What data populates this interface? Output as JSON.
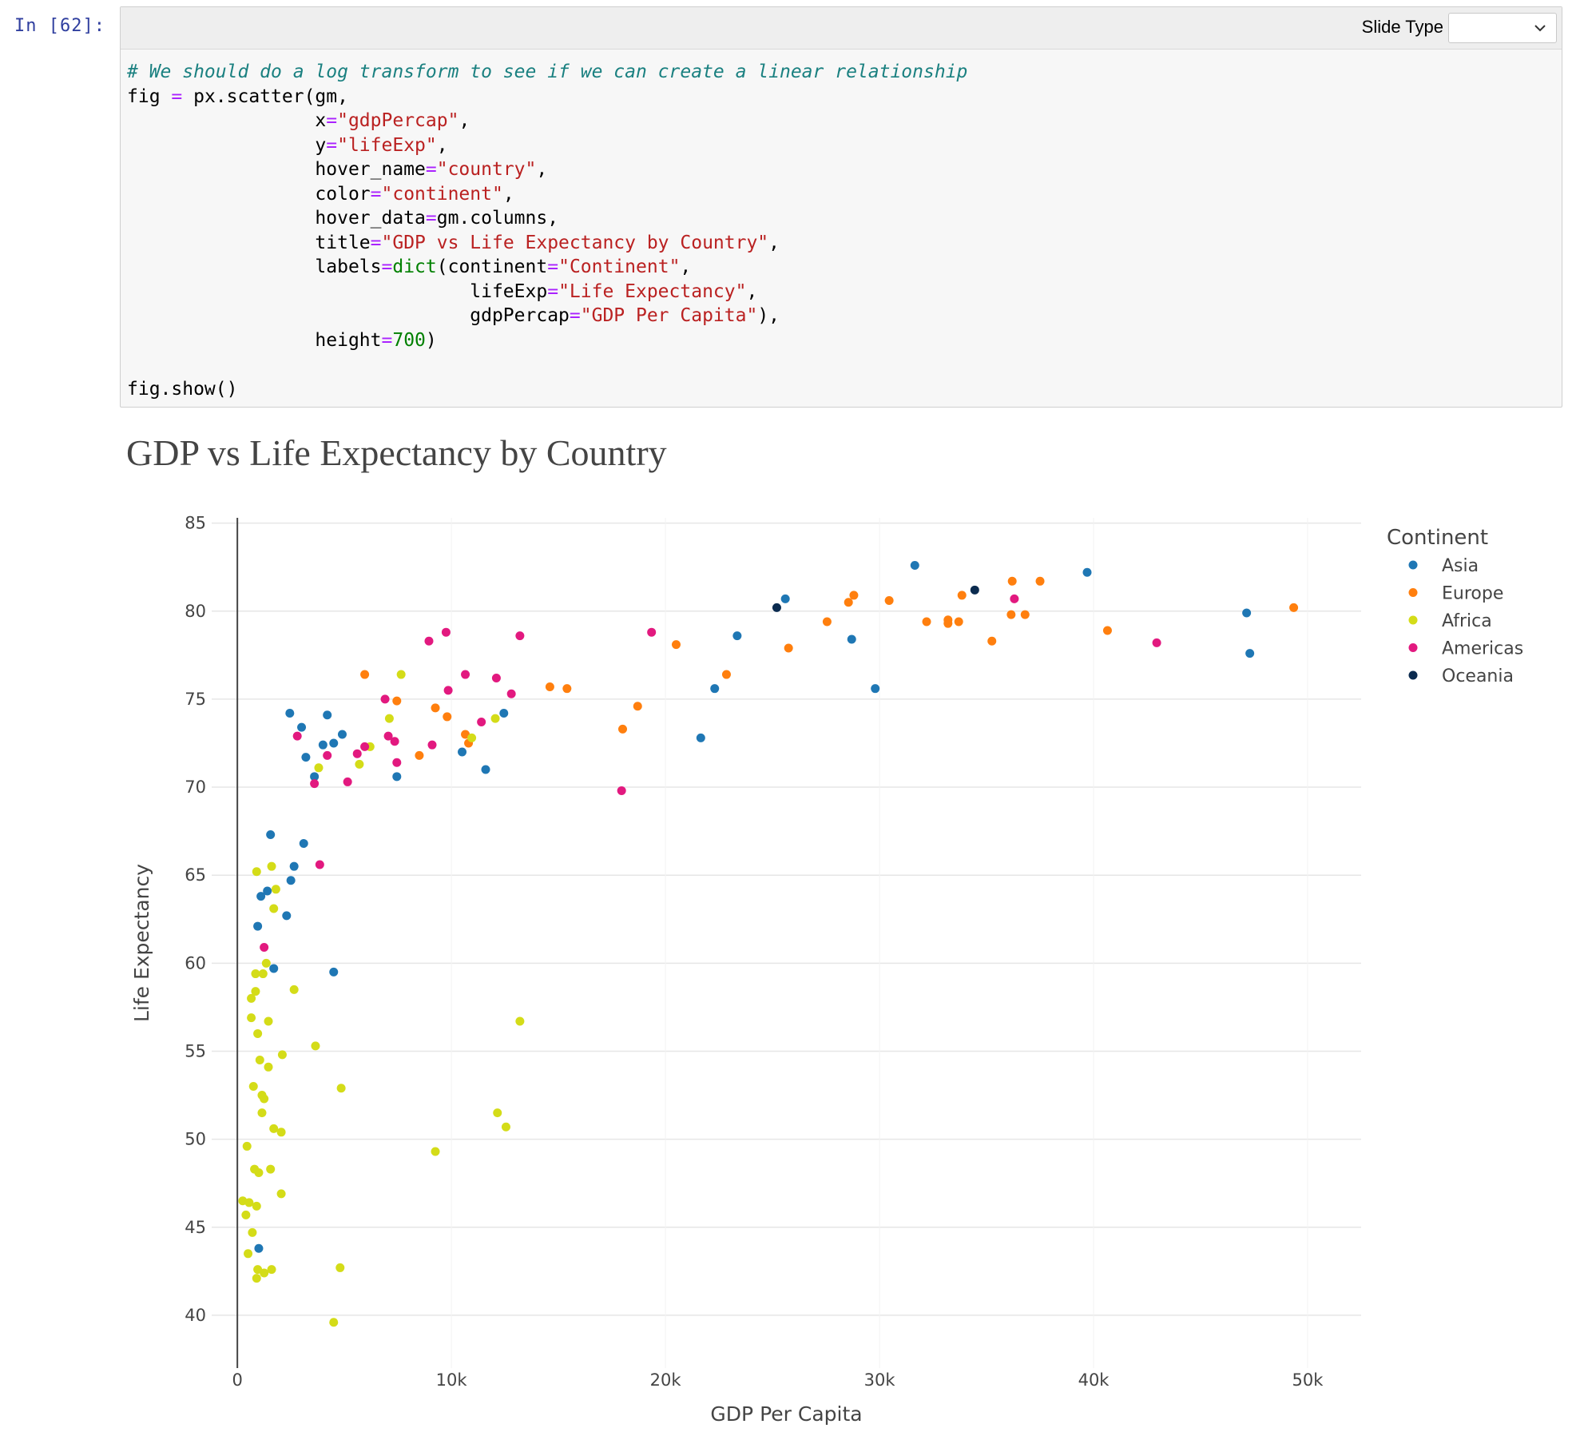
{
  "prompt": "In [62]:",
  "toolbar": {
    "slide_type_label": "Slide Type",
    "slide_type_value": ""
  },
  "code": {
    "comment": "# We should do a log transform to see if we can create a linear relationship",
    "lines": [
      [
        [
          "t",
          "fig "
        ],
        [
          "op",
          "="
        ],
        [
          "t",
          " px.scatter(gm,"
        ]
      ],
      [
        [
          "t",
          "                 x"
        ],
        [
          "op",
          "="
        ],
        [
          "str",
          "\"gdpPercap\""
        ],
        [
          "t",
          ","
        ]
      ],
      [
        [
          "t",
          "                 y"
        ],
        [
          "op",
          "="
        ],
        [
          "str",
          "\"lifeExp\""
        ],
        [
          "t",
          ","
        ]
      ],
      [
        [
          "t",
          "                 hover_name"
        ],
        [
          "op",
          "="
        ],
        [
          "str",
          "\"country\""
        ],
        [
          "t",
          ","
        ]
      ],
      [
        [
          "t",
          "                 color"
        ],
        [
          "op",
          "="
        ],
        [
          "str",
          "\"continent\""
        ],
        [
          "t",
          ","
        ]
      ],
      [
        [
          "t",
          "                 hover_data"
        ],
        [
          "op",
          "="
        ],
        [
          "t",
          "gm.columns,"
        ]
      ],
      [
        [
          "t",
          "                 title"
        ],
        [
          "op",
          "="
        ],
        [
          "str",
          "\"GDP vs Life Expectancy by Country\""
        ],
        [
          "t",
          ","
        ]
      ],
      [
        [
          "t",
          "                 labels"
        ],
        [
          "op",
          "="
        ],
        [
          "bi",
          "dict"
        ],
        [
          "t",
          "(continent"
        ],
        [
          "op",
          "="
        ],
        [
          "str",
          "\"Continent\""
        ],
        [
          "t",
          ","
        ]
      ],
      [
        [
          "t",
          "                               lifeExp"
        ],
        [
          "op",
          "="
        ],
        [
          "str",
          "\"Life Expectancy\""
        ],
        [
          "t",
          ","
        ]
      ],
      [
        [
          "t",
          "                               gdpPercap"
        ],
        [
          "op",
          "="
        ],
        [
          "str",
          "\"GDP Per Capita\""
        ],
        [
          "t",
          "),"
        ]
      ],
      [
        [
          "t",
          "                 height"
        ],
        [
          "op",
          "="
        ],
        [
          "num",
          "700"
        ],
        [
          "t",
          ")"
        ]
      ],
      [
        [
          "t",
          ""
        ]
      ],
      [
        [
          "t",
          "fig.show()"
        ]
      ]
    ]
  },
  "chart_data": {
    "type": "scatter",
    "title": "GDP vs Life Expectancy by Country",
    "xlabel": "GDP Per Capita",
    "ylabel": "Life Expectancy",
    "xlim": [
      -1200,
      52500
    ],
    "ylim": [
      37,
      85.3
    ],
    "x_ticks": [
      0,
      10000,
      20000,
      30000,
      40000,
      50000
    ],
    "x_tick_labels": [
      "0",
      "10k",
      "20k",
      "30k",
      "40k",
      "50k"
    ],
    "y_ticks": [
      40,
      45,
      50,
      55,
      60,
      65,
      70,
      75,
      80,
      85
    ],
    "y_tick_labels": [
      "40",
      "45",
      "50",
      "55",
      "60",
      "65",
      "70",
      "75",
      "80",
      "85"
    ],
    "grid": true,
    "legend": {
      "title": "Continent",
      "position": "top-right"
    },
    "colors": {
      "Asia": "#1f77b4",
      "Europe": "#ff7f0e",
      "Africa": "#d4dc18",
      "Americas": "#e2197f",
      "Oceania": "#0b2b4f"
    },
    "series": [
      {
        "name": "Asia",
        "points": [
          [
            2450,
            74.2
          ],
          [
            3000,
            73.4
          ],
          [
            3200,
            71.7
          ],
          [
            3600,
            70.6
          ],
          [
            4000,
            72.4
          ],
          [
            4200,
            74.1
          ],
          [
            4500,
            72.5
          ],
          [
            4900,
            73.0
          ],
          [
            7450,
            70.6
          ],
          [
            10500,
            72.0
          ],
          [
            11600,
            71.0
          ],
          [
            12450,
            74.2
          ],
          [
            21650,
            72.8
          ],
          [
            22300,
            75.6
          ],
          [
            23350,
            78.6
          ],
          [
            25600,
            80.7
          ],
          [
            28700,
            78.4
          ],
          [
            29800,
            75.6
          ],
          [
            31650,
            82.6
          ],
          [
            39700,
            82.2
          ],
          [
            47150,
            79.9
          ],
          [
            47300,
            77.6
          ],
          [
            1550,
            67.3
          ],
          [
            3100,
            66.8
          ],
          [
            2650,
            65.5
          ],
          [
            2500,
            64.7
          ],
          [
            1400,
            64.1
          ],
          [
            1100,
            63.8
          ],
          [
            2300,
            62.7
          ],
          [
            950,
            62.1
          ],
          [
            1700,
            59.7
          ],
          [
            4500,
            59.5
          ],
          [
            1000,
            43.8
          ]
        ]
      },
      {
        "name": "Europe",
        "points": [
          [
            5950,
            76.4
          ],
          [
            7450,
            74.9
          ],
          [
            8500,
            71.8
          ],
          [
            9250,
            74.5
          ],
          [
            9800,
            74.0
          ],
          [
            10650,
            73.0
          ],
          [
            10800,
            72.5
          ],
          [
            14600,
            75.7
          ],
          [
            15400,
            75.6
          ],
          [
            18000,
            73.3
          ],
          [
            18700,
            74.6
          ],
          [
            20500,
            78.1
          ],
          [
            22850,
            76.4
          ],
          [
            25750,
            77.9
          ],
          [
            27550,
            79.4
          ],
          [
            28550,
            80.5
          ],
          [
            28800,
            80.9
          ],
          [
            30450,
            80.6
          ],
          [
            32200,
            79.4
          ],
          [
            33200,
            79.3
          ],
          [
            33200,
            79.5
          ],
          [
            33700,
            79.4
          ],
          [
            33850,
            80.9
          ],
          [
            35250,
            78.3
          ],
          [
            36150,
            79.8
          ],
          [
            36200,
            81.7
          ],
          [
            36800,
            79.8
          ],
          [
            37500,
            81.7
          ],
          [
            40650,
            78.9
          ],
          [
            49350,
            80.2
          ]
        ]
      },
      {
        "name": "Africa",
        "points": [
          [
            3800,
            71.1
          ],
          [
            5700,
            71.3
          ],
          [
            6200,
            72.3
          ],
          [
            7100,
            73.9
          ],
          [
            7650,
            76.4
          ],
          [
            10950,
            72.8
          ],
          [
            12050,
            73.9
          ],
          [
            900,
            65.2
          ],
          [
            1600,
            65.5
          ],
          [
            1800,
            64.2
          ],
          [
            1700,
            63.1
          ],
          [
            1350,
            60.0
          ],
          [
            850,
            59.4
          ],
          [
            1200,
            59.4
          ],
          [
            2650,
            58.5
          ],
          [
            650,
            58.0
          ],
          [
            850,
            58.4
          ],
          [
            650,
            56.9
          ],
          [
            1450,
            56.7
          ],
          [
            950,
            56.0
          ],
          [
            3650,
            55.3
          ],
          [
            13200,
            56.7
          ],
          [
            2100,
            54.8
          ],
          [
            1050,
            54.5
          ],
          [
            1450,
            54.1
          ],
          [
            750,
            53.0
          ],
          [
            4850,
            52.9
          ],
          [
            1150,
            52.5
          ],
          [
            1250,
            52.3
          ],
          [
            1150,
            51.5
          ],
          [
            12150,
            51.5
          ],
          [
            1700,
            50.6
          ],
          [
            2050,
            50.4
          ],
          [
            12550,
            50.7
          ],
          [
            450,
            49.6
          ],
          [
            9250,
            49.3
          ],
          [
            800,
            48.3
          ],
          [
            1000,
            48.1
          ],
          [
            1550,
            48.3
          ],
          [
            250,
            46.5
          ],
          [
            550,
            46.4
          ],
          [
            900,
            46.2
          ],
          [
            2050,
            46.9
          ],
          [
            400,
            45.7
          ],
          [
            700,
            44.7
          ],
          [
            500,
            43.5
          ],
          [
            1600,
            42.6
          ],
          [
            950,
            42.6
          ],
          [
            1250,
            42.4
          ],
          [
            900,
            42.1
          ],
          [
            4800,
            42.7
          ],
          [
            4500,
            39.6
          ]
        ]
      },
      {
        "name": "Americas",
        "points": [
          [
            2800,
            72.9
          ],
          [
            3600,
            70.2
          ],
          [
            4200,
            71.8
          ],
          [
            5150,
            70.3
          ],
          [
            5600,
            71.9
          ],
          [
            5950,
            72.3
          ],
          [
            6900,
            75.0
          ],
          [
            7050,
            72.9
          ],
          [
            7350,
            72.6
          ],
          [
            7450,
            71.4
          ],
          [
            8950,
            78.3
          ],
          [
            9100,
            72.4
          ],
          [
            9750,
            78.8
          ],
          [
            9850,
            75.5
          ],
          [
            10650,
            76.4
          ],
          [
            11400,
            73.7
          ],
          [
            12100,
            76.2
          ],
          [
            12800,
            75.3
          ],
          [
            13200,
            78.6
          ],
          [
            17950,
            69.8
          ],
          [
            19350,
            78.8
          ],
          [
            36300,
            80.7
          ],
          [
            42950,
            78.2
          ],
          [
            3850,
            65.6
          ],
          [
            1250,
            60.9
          ]
        ]
      },
      {
        "name": "Oceania",
        "points": [
          [
            25200,
            80.2
          ],
          [
            34450,
            81.2
          ]
        ]
      }
    ]
  }
}
